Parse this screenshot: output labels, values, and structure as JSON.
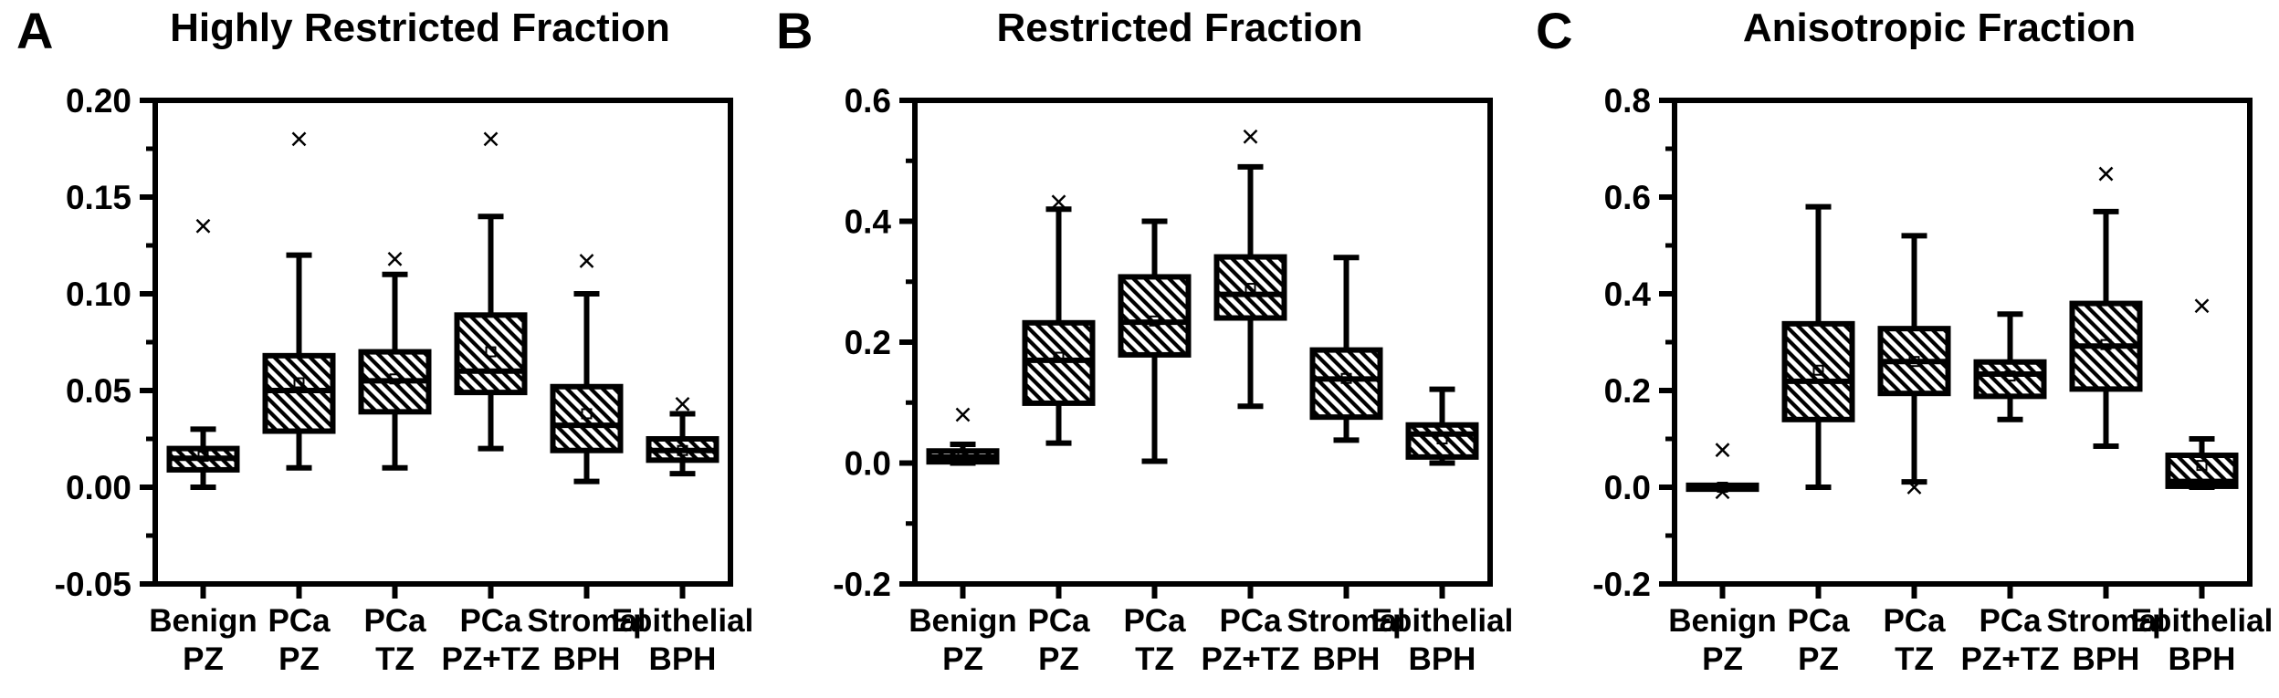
{
  "figure": {
    "background_color": "#ffffff",
    "ink_color": "#000000",
    "panel_letters": [
      "A",
      "B",
      "C"
    ]
  },
  "chart_data": [
    {
      "type": "box",
      "panel_letter": "A",
      "title": "Highly Restricted Fraction",
      "categories": [
        "Benign PZ",
        "PCa PZ",
        "PCa TZ",
        "PCa PZ+TZ",
        "Stromal BPH",
        "Epithelial BPH"
      ],
      "ylim": [
        -0.05,
        0.2
      ],
      "y_major_step": 0.05,
      "y_tick_labels": [
        "-0.05",
        "0.00",
        "0.05",
        "0.10",
        "0.15",
        "0.20"
      ],
      "grid": false,
      "legend": "none",
      "boxes": [
        {
          "category": "Benign PZ",
          "whisker_low": 0.0,
          "q1": 0.009,
          "median": 0.015,
          "q3": 0.02,
          "whisker_high": 0.03,
          "mean": 0.016,
          "outliers": [
            0.135
          ]
        },
        {
          "category": "PCa PZ",
          "whisker_low": 0.01,
          "q1": 0.029,
          "median": 0.05,
          "q3": 0.068,
          "whisker_high": 0.12,
          "mean": 0.054,
          "outliers": [
            0.18
          ]
        },
        {
          "category": "PCa TZ",
          "whisker_low": 0.01,
          "q1": 0.039,
          "median": 0.055,
          "q3": 0.07,
          "whisker_high": 0.11,
          "mean": 0.056,
          "outliers": [
            0.118
          ]
        },
        {
          "category": "PCa PZ+TZ",
          "whisker_low": 0.02,
          "q1": 0.049,
          "median": 0.06,
          "q3": 0.089,
          "whisker_high": 0.14,
          "mean": 0.07,
          "outliers": [
            0.18
          ]
        },
        {
          "category": "Stromal BPH",
          "whisker_low": 0.003,
          "q1": 0.019,
          "median": 0.032,
          "q3": 0.052,
          "whisker_high": 0.1,
          "mean": 0.038,
          "outliers": [
            0.117
          ]
        },
        {
          "category": "Epithelial BPH",
          "whisker_low": 0.007,
          "q1": 0.014,
          "median": 0.019,
          "q3": 0.025,
          "whisker_high": 0.038,
          "mean": 0.019,
          "outliers": [
            0.043
          ]
        }
      ]
    },
    {
      "type": "box",
      "panel_letter": "B",
      "title": "Restricted Fraction",
      "categories": [
        "Benign PZ",
        "PCa PZ",
        "PCa TZ",
        "PCa PZ+TZ",
        "Stromal BPH",
        "Epithelial BPH"
      ],
      "ylim": [
        -0.2,
        0.6
      ],
      "y_major_step": 0.2,
      "y_tick_labels": [
        "-0.2",
        "0.0",
        "0.2",
        "0.4",
        "0.6"
      ],
      "grid": false,
      "legend": "none",
      "boxes": [
        {
          "category": "Benign PZ",
          "whisker_low": 0.0,
          "q1": 0.002,
          "median": 0.01,
          "q3": 0.02,
          "whisker_high": 0.031,
          "mean": 0.01,
          "outliers": [
            0.08
          ]
        },
        {
          "category": "PCa PZ",
          "whisker_low": 0.033,
          "q1": 0.099,
          "median": 0.17,
          "q3": 0.232,
          "whisker_high": 0.42,
          "mean": 0.175,
          "outliers": [
            0.432
          ]
        },
        {
          "category": "PCa TZ",
          "whisker_low": 0.003,
          "q1": 0.179,
          "median": 0.233,
          "q3": 0.308,
          "whisker_high": 0.4,
          "mean": 0.235,
          "outliers": []
        },
        {
          "category": "PCa PZ+TZ",
          "whisker_low": 0.094,
          "q1": 0.24,
          "median": 0.279,
          "q3": 0.341,
          "whisker_high": 0.49,
          "mean": 0.289,
          "outliers": [
            0.54
          ]
        },
        {
          "category": "Stromal BPH",
          "whisker_low": 0.038,
          "q1": 0.076,
          "median": 0.139,
          "q3": 0.187,
          "whisker_high": 0.34,
          "mean": 0.14,
          "outliers": []
        },
        {
          "category": "Epithelial BPH",
          "whisker_low": 0.0,
          "q1": 0.01,
          "median": 0.048,
          "q3": 0.063,
          "whisker_high": 0.122,
          "mean": 0.04,
          "outliers": []
        }
      ]
    },
    {
      "type": "box",
      "panel_letter": "C",
      "title": "Anisotropic Fraction",
      "categories": [
        "Benign PZ",
        "PCa PZ",
        "PCa TZ",
        "PCa PZ+TZ",
        "Stromal BPH",
        "Epithelial BPH"
      ],
      "ylim": [
        -0.2,
        0.8
      ],
      "y_major_step": 0.2,
      "y_tick_labels": [
        "-0.2",
        "0.0",
        "0.2",
        "0.4",
        "0.6",
        "0.8"
      ],
      "grid": false,
      "legend": "none",
      "boxes": [
        {
          "category": "Benign PZ",
          "whisker_low": -0.002,
          "q1": -0.004,
          "median": 0.0,
          "q3": 0.004,
          "whisker_high": 0.002,
          "mean": 0.0,
          "outliers": [
            0.077,
            -0.01
          ]
        },
        {
          "category": "PCa PZ",
          "whisker_low": 0.0,
          "q1": 0.14,
          "median": 0.219,
          "q3": 0.338,
          "whisker_high": 0.58,
          "mean": 0.242,
          "outliers": []
        },
        {
          "category": "PCa TZ",
          "whisker_low": 0.011,
          "q1": 0.194,
          "median": 0.26,
          "q3": 0.328,
          "whisker_high": 0.52,
          "mean": 0.26,
          "outliers": [
            0.0
          ]
        },
        {
          "category": "PCa PZ+TZ",
          "whisker_low": 0.14,
          "q1": 0.188,
          "median": 0.234,
          "q3": 0.259,
          "whisker_high": 0.358,
          "mean": 0.23,
          "outliers": []
        },
        {
          "category": "Stromal BPH",
          "whisker_low": 0.085,
          "q1": 0.203,
          "median": 0.292,
          "q3": 0.38,
          "whisker_high": 0.57,
          "mean": 0.295,
          "outliers": [
            0.648
          ]
        },
        {
          "category": "Epithelial BPH",
          "whisker_low": 0.0,
          "q1": 0.002,
          "median": 0.012,
          "q3": 0.066,
          "whisker_high": 0.1,
          "mean": 0.045,
          "outliers": [
            0.375
          ]
        }
      ]
    }
  ]
}
